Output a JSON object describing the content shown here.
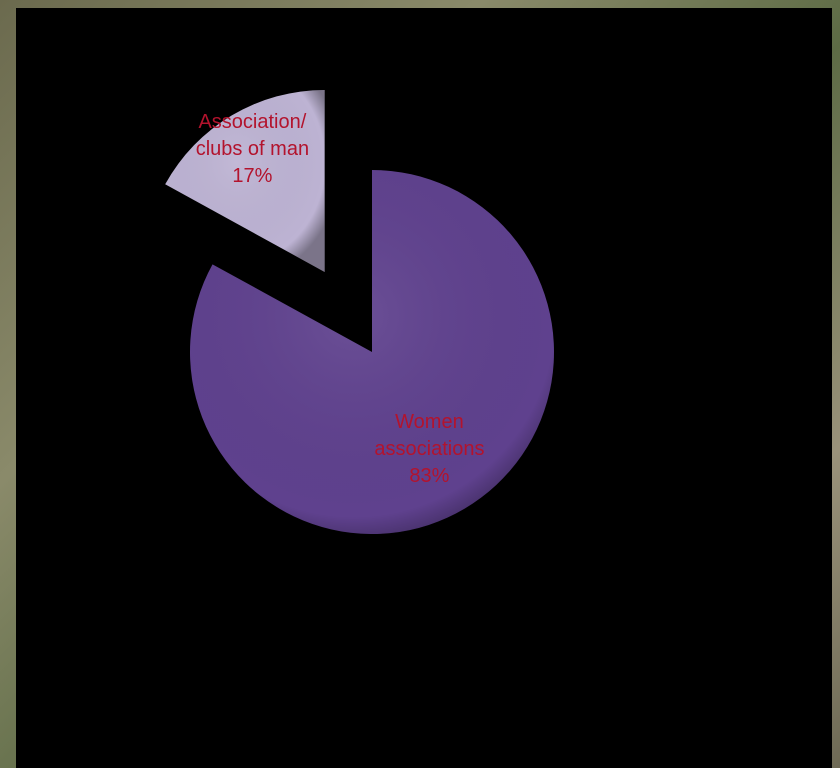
{
  "chart_data": {
    "type": "pie",
    "categories": [
      "Women associations",
      "Association/ clubs of man"
    ],
    "values": [
      83,
      17
    ],
    "value_labels": [
      "83%",
      "17%"
    ],
    "colors": [
      "#5f418e",
      "#bdb3d3"
    ]
  }
}
